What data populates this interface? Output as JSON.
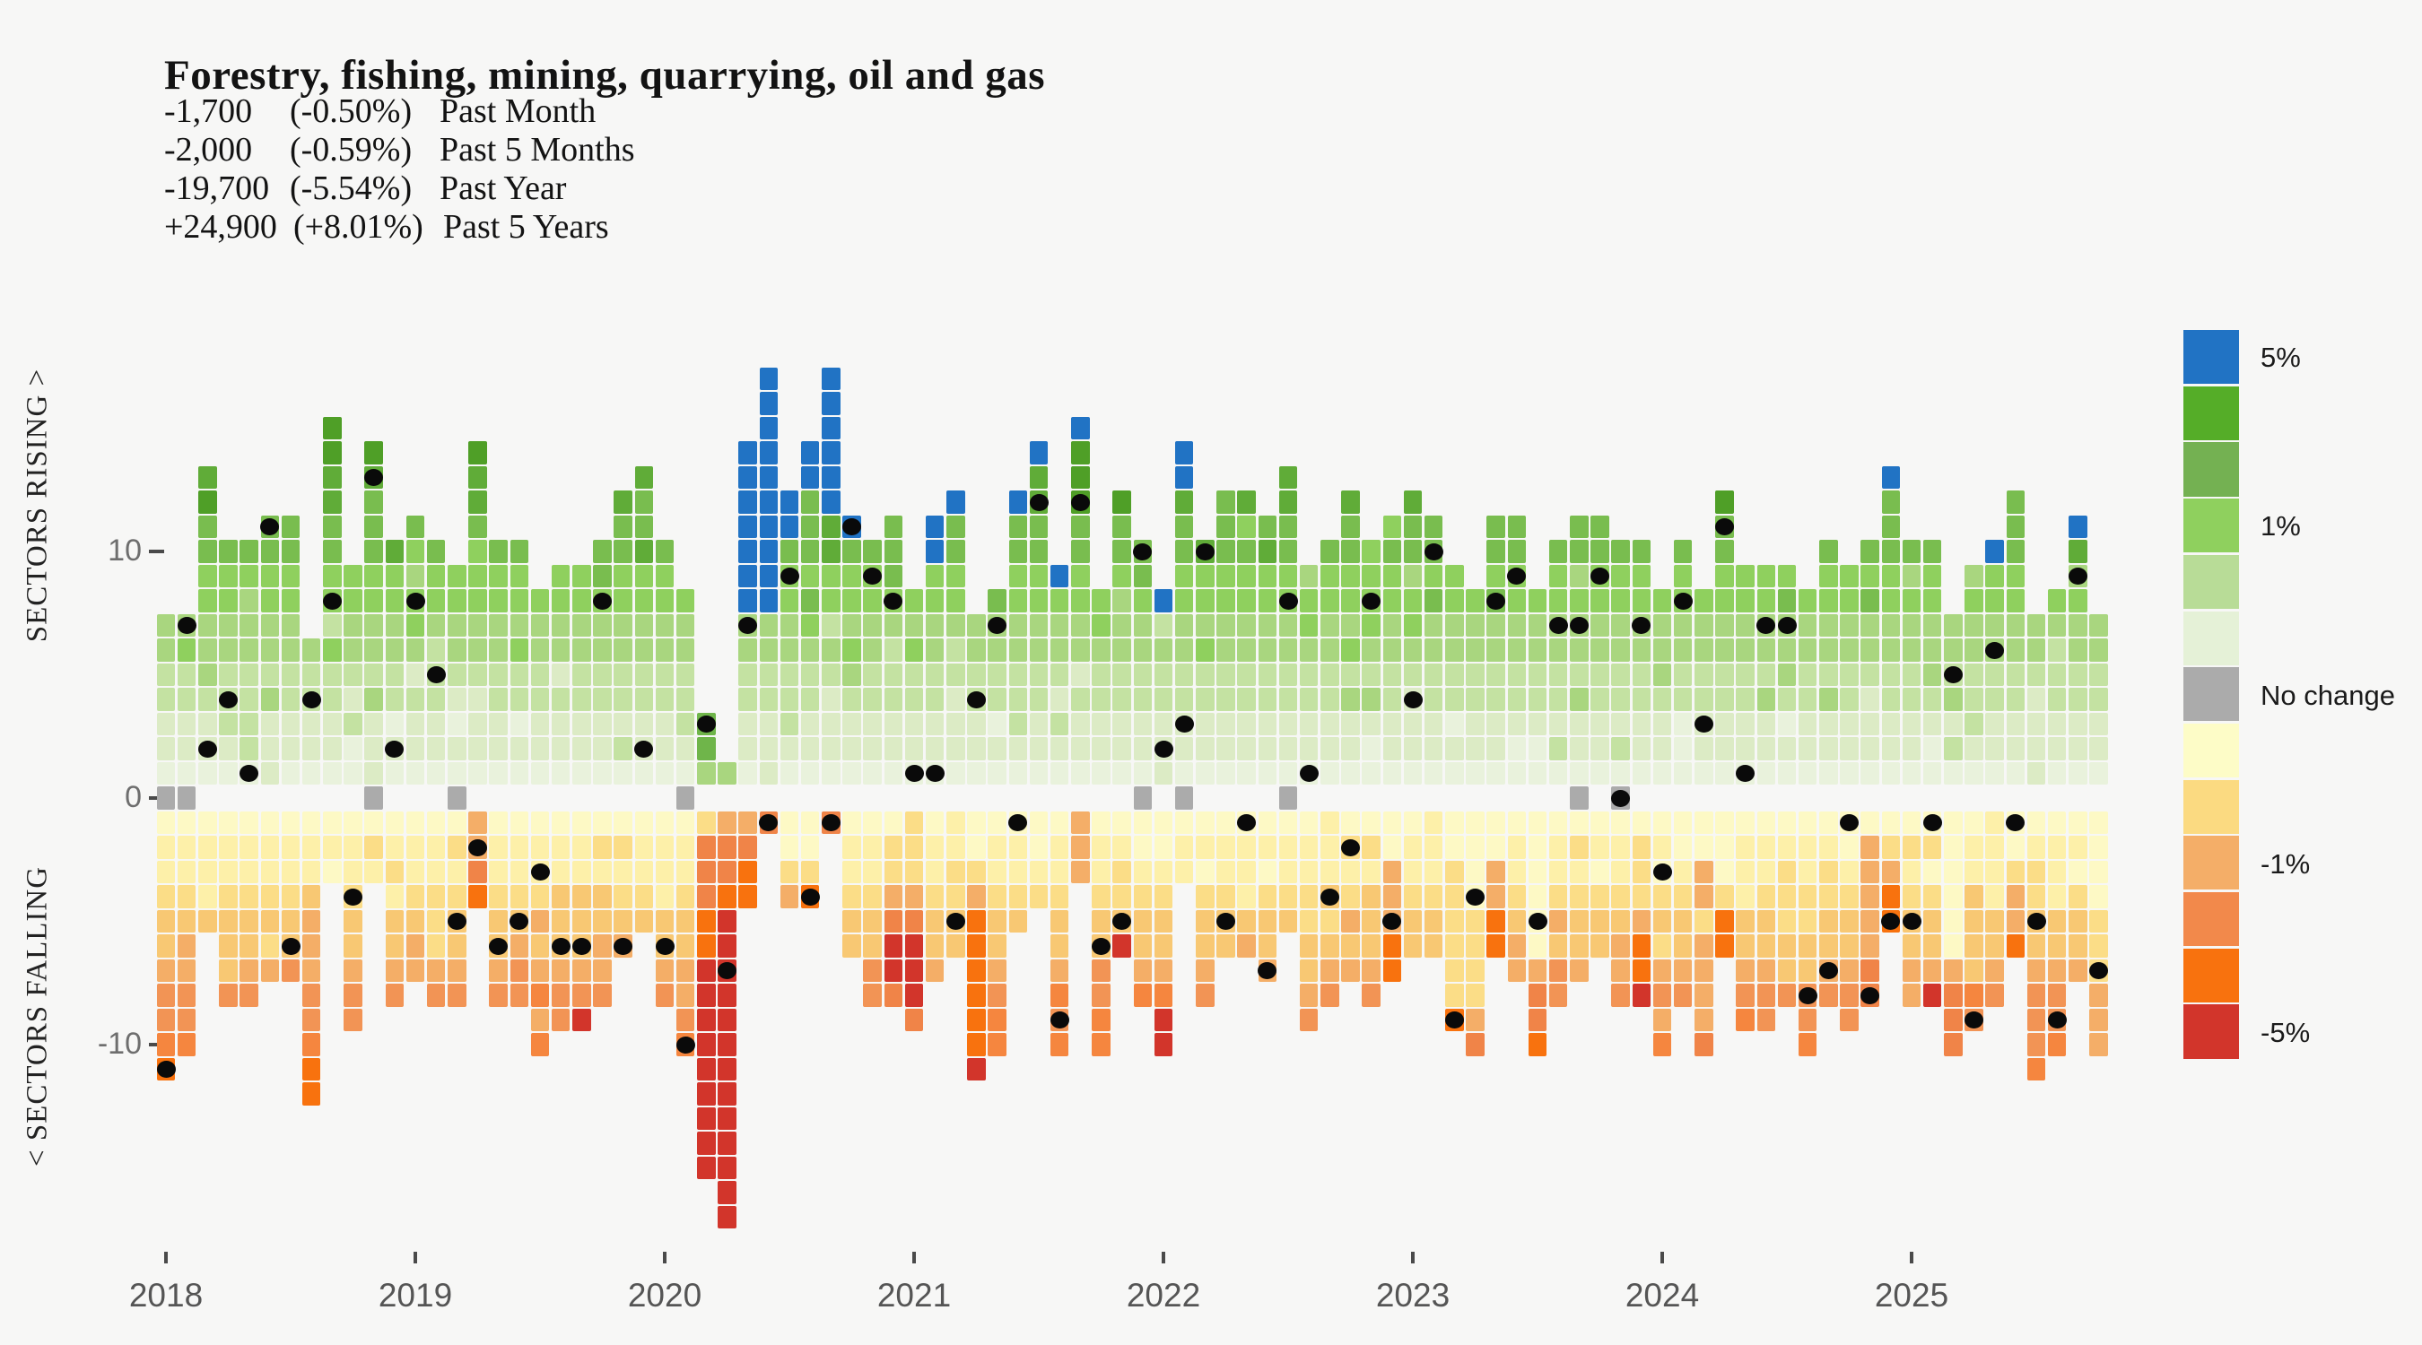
{
  "title": "Forestry, fishing, mining, quarrying, oil and gas",
  "stats": [
    {
      "value": "-1,700",
      "pct": "(-0.50%)",
      "period": "Past Month"
    },
    {
      "value": "-2,000",
      "pct": "(-0.59%)",
      "period": "Past 5 Months"
    },
    {
      "value": "-19,700",
      "pct": "(-5.54%)",
      "period": "Past Year"
    },
    {
      "value": "+24,900",
      "pct": "(+8.01%)",
      "period": "Past 5 Years"
    }
  ],
  "axis": {
    "rising_label": "SECTORS RISING >",
    "falling_label": "< SECTORS FALLING",
    "y_ticks": [
      {
        "label": "10",
        "value": 10
      },
      {
        "label": "0",
        "value": 0
      },
      {
        "label": "-10",
        "value": -10
      }
    ],
    "years": [
      {
        "label": "2018",
        "month_index": 0
      },
      {
        "label": "2019",
        "month_index": 12
      },
      {
        "label": "2020",
        "month_index": 24
      },
      {
        "label": "2021",
        "month_index": 36
      },
      {
        "label": "2022",
        "month_index": 48
      },
      {
        "label": "2023",
        "month_index": 60
      },
      {
        "label": "2024",
        "month_index": 72
      },
      {
        "label": "2025",
        "month_index": 84
      }
    ]
  },
  "legend": {
    "swatches": [
      "#2173c4",
      "#55ad28",
      "#74b152",
      "#8fd05e",
      "#b8dc97",
      "#e5f1d7",
      "#ababab",
      "#fdfcc7",
      "#fbda81",
      "#f4ae68",
      "#f2894b",
      "#f8720e",
      "#d2352b"
    ],
    "labels": [
      {
        "text": "5%",
        "block": 0
      },
      {
        "text": "1%",
        "block": 3
      },
      {
        "text": "No change",
        "block": 6
      },
      {
        "text": "-1%",
        "block": 9
      },
      {
        "text": "-5%",
        "block": 12
      }
    ]
  },
  "chart_data": {
    "type": "heatmap",
    "description": "Monthly waffle columns: each square = one economic sector. Squares above 0 = sectors with rising employment that month (color = % gain, green to blue >5%), below 0 = sectors falling (yellow to red <-5%), gray at 0 = no change. Black dot = rank position of this sector (forestry, fishing, mining, quarrying, oil and gas) within that month.",
    "x_range": [
      "2018-01",
      "2025-10"
    ],
    "ylabel_units": "number of sectors rising / falling",
    "ylim": [
      -18,
      18
    ],
    "grid": false,
    "legend_position": "right",
    "palette": {
      "blue": "#2173c4",
      "gray": "#ababab",
      "red": "#d2352b",
      "greens_low_to_high": [
        "#e9f2dc",
        "#dcebc5",
        "#c4e2a2",
        "#a9d67f",
        "#8fd05e",
        "#79bd4f",
        "#60ac38",
        "#4f9f27"
      ],
      "downs_shallow_to_deep": [
        "#fdf9c5",
        "#fdf0a9",
        "#fbdd87",
        "#f8c873",
        "#f4ae67",
        "#f29455",
        "#f5863f",
        "#f8720e"
      ],
      "override_up": [
        "#e9f2dc",
        "#c4e2a2",
        "#a9d67f",
        "#8fd05e",
        "#6fb54a",
        "#55a829",
        "#2173c4"
      ],
      "override_down": [
        "#fdf9c5",
        "#fbdd87",
        "#f4ae68",
        "#f08448",
        "#f8720e",
        "#d2352b"
      ]
    },
    "months": [
      {
        "m": "2018-01",
        "u": 7,
        "g": 1,
        "d": 11,
        "dot": -11
      },
      {
        "m": "2018-02",
        "u": 7,
        "g": 1,
        "d": 10,
        "dot": 7
      },
      {
        "m": "2018-03",
        "u": 13,
        "d": 5,
        "dot": 2
      },
      {
        "m": "2018-04",
        "u": 10,
        "d": 8,
        "dot": 4
      },
      {
        "m": "2018-05",
        "u": 10,
        "d": 8,
        "dot": 1
      },
      {
        "m": "2018-06",
        "u": 11,
        "d": 7,
        "dot": 11
      },
      {
        "m": "2018-07",
        "u": 11,
        "d": 7,
        "dot": -6
      },
      {
        "m": "2018-08",
        "u": 6,
        "d": 12,
        "dot": 4
      },
      {
        "m": "2018-09",
        "u": 15,
        "d": 3,
        "dot": 8
      },
      {
        "m": "2018-10",
        "u": 9,
        "d": 9,
        "dot": -4
      },
      {
        "m": "2018-11",
        "u": 14,
        "g": 1,
        "d": 3,
        "dot": 13
      },
      {
        "m": "2018-12",
        "u": 10,
        "d": 8,
        "dot": 2
      },
      {
        "m": "2019-01",
        "u": 11,
        "d": 7,
        "dot": 8
      },
      {
        "m": "2019-02",
        "u": 10,
        "d": 8,
        "dot": 5
      },
      {
        "m": "2019-03",
        "u": 9,
        "g": 1,
        "d": 8,
        "dot": -5
      },
      {
        "m": "2019-04",
        "u": 14,
        "d": 4,
        "dot": -2,
        "dc": [
          2,
          2,
          3,
          4
        ]
      },
      {
        "m": "2019-05",
        "u": 10,
        "d": 8,
        "dot": -6
      },
      {
        "m": "2019-06",
        "u": 10,
        "d": 8,
        "dot": -5
      },
      {
        "m": "2019-07",
        "u": 8,
        "d": 10,
        "dot": -3
      },
      {
        "m": "2019-08",
        "u": 9,
        "d": 9,
        "dot": -6
      },
      {
        "m": "2019-09",
        "u": 9,
        "d": 9,
        "dot": -6,
        "r": 1
      },
      {
        "m": "2019-10",
        "u": 10,
        "d": 8,
        "dot": 8
      },
      {
        "m": "2019-11",
        "u": 12,
        "d": 6,
        "dot": -6
      },
      {
        "m": "2019-12",
        "u": 13,
        "d": 5,
        "dot": 2
      },
      {
        "m": "2020-01",
        "u": 10,
        "d": 8,
        "dot": -6
      },
      {
        "m": "2020-02",
        "u": 8,
        "g": 1,
        "d": 10,
        "dot": -10
      },
      {
        "m": "2020-03",
        "u": 3,
        "d": 15,
        "dot": 3,
        "r": 9,
        "uc": [
          2,
          4,
          4
        ],
        "dc": [
          1,
          3,
          3,
          3,
          4,
          4
        ]
      },
      {
        "m": "2020-04",
        "u": 1,
        "d": 17,
        "dot": -7,
        "r": 13,
        "uc": [
          2
        ],
        "dc": [
          2,
          3,
          3,
          4
        ]
      },
      {
        "m": "2020-05",
        "u": 14,
        "d": 4,
        "dot": 7,
        "b": 7,
        "dc": [
          2,
          3,
          4,
          4
        ]
      },
      {
        "m": "2020-06",
        "u": 17,
        "d": 1,
        "dot": -1,
        "b": 10,
        "dc": [
          3
        ]
      },
      {
        "m": "2020-07",
        "u": 12,
        "d": 4,
        "dot": 9,
        "b": 2,
        "dc": [
          0,
          0,
          1,
          2
        ]
      },
      {
        "m": "2020-08",
        "u": 14,
        "d": 4,
        "dot": -4,
        "b": 2,
        "dc": [
          0,
          0,
          1,
          4
        ]
      },
      {
        "m": "2020-09",
        "u": 17,
        "d": 1,
        "dot": -1,
        "b": 6,
        "dc": [
          3
        ]
      },
      {
        "m": "2020-10",
        "u": 11,
        "d": 6,
        "dot": 11,
        "b": 1
      },
      {
        "m": "2020-11",
        "u": 10,
        "d": 8,
        "dot": 9
      },
      {
        "m": "2020-12",
        "u": 11,
        "d": 8,
        "dot": 8,
        "dc": [
          0,
          1,
          1,
          2,
          3,
          5,
          5,
          3
        ]
      },
      {
        "m": "2021-01",
        "u": 8,
        "d": 9,
        "dot": 1,
        "dc": [
          1,
          1,
          1,
          2,
          3,
          5,
          5,
          5,
          3
        ]
      },
      {
        "m": "2021-02",
        "u": 11,
        "d": 7,
        "dot": 1,
        "b": 2
      },
      {
        "m": "2021-03",
        "u": 12,
        "d": 6,
        "dot": -5,
        "b": 1
      },
      {
        "m": "2021-04",
        "u": 7,
        "d": 11,
        "dot": 4,
        "dc": [
          0,
          0,
          1,
          2,
          4,
          4,
          4,
          4,
          4,
          4,
          5
        ]
      },
      {
        "m": "2021-05",
        "u": 8,
        "d": 10,
        "dot": 7
      },
      {
        "m": "2021-06",
        "u": 12,
        "d": 5,
        "dot": -1,
        "b": 1
      },
      {
        "m": "2021-07",
        "u": 14,
        "d": 4,
        "dot": 12,
        "b": 1
      },
      {
        "m": "2021-08",
        "u": 9,
        "d": 10,
        "dot": -9,
        "b": 1
      },
      {
        "m": "2021-09",
        "u": 15,
        "d": 3,
        "dot": 12,
        "b": 1,
        "dc": [
          2,
          2,
          2
        ]
      },
      {
        "m": "2021-10",
        "u": 8,
        "d": 10,
        "dot": -6
      },
      {
        "m": "2021-11",
        "u": 12,
        "d": 6,
        "dot": -5,
        "r": 1
      },
      {
        "m": "2021-12",
        "u": 10,
        "g": 1,
        "d": 8,
        "dot": 10
      },
      {
        "m": "2022-01",
        "u": 8,
        "d": 10,
        "dot": 2,
        "b": 1,
        "r": 2
      },
      {
        "m": "2022-02",
        "u": 14,
        "g": 1,
        "d": 3,
        "dot": 3,
        "b": 2
      },
      {
        "m": "2022-03",
        "u": 10,
        "d": 8,
        "dot": 10
      },
      {
        "m": "2022-04",
        "u": 12,
        "d": 6,
        "dot": -5
      },
      {
        "m": "2022-05",
        "u": 12,
        "d": 6,
        "dot": -1
      },
      {
        "m": "2022-06",
        "u": 11,
        "d": 7,
        "dot": -7
      },
      {
        "m": "2022-07",
        "u": 13,
        "g": 1,
        "d": 5,
        "dot": 8
      },
      {
        "m": "2022-08",
        "u": 9,
        "d": 9,
        "dot": 1
      },
      {
        "m": "2022-09",
        "u": 10,
        "d": 8,
        "dot": -4
      },
      {
        "m": "2022-10",
        "u": 12,
        "d": 7,
        "dot": -2
      },
      {
        "m": "2022-11",
        "u": 10,
        "d": 8,
        "dot": 8
      },
      {
        "m": "2022-12",
        "u": 11,
        "d": 7,
        "dot": -5,
        "dc": [
          0,
          0,
          2,
          2,
          2,
          4,
          4
        ]
      },
      {
        "m": "2023-01",
        "u": 12,
        "d": 6,
        "dot": 4
      },
      {
        "m": "2023-02",
        "u": 11,
        "d": 6,
        "dot": 10
      },
      {
        "m": "2023-03",
        "u": 9,
        "d": 9,
        "dot": -9,
        "dc": [
          0,
          0,
          1,
          1,
          1,
          1,
          1,
          1,
          4
        ]
      },
      {
        "m": "2023-04",
        "u": 8,
        "d": 10,
        "dot": -4,
        "dc": [
          0,
          0,
          0,
          0,
          1,
          1,
          1,
          1,
          2,
          3
        ]
      },
      {
        "m": "2023-05",
        "u": 11,
        "d": 6,
        "dot": 8,
        "dc": [
          0,
          0,
          2,
          2,
          4,
          4
        ]
      },
      {
        "m": "2023-06",
        "u": 11,
        "d": 7,
        "dot": 9
      },
      {
        "m": "2023-07",
        "u": 8,
        "d": 10,
        "dot": -5,
        "dc": [
          0,
          0,
          0,
          0,
          0,
          0,
          2,
          3,
          3,
          4
        ]
      },
      {
        "m": "2023-08",
        "u": 10,
        "d": 8,
        "dot": 7
      },
      {
        "m": "2023-09",
        "u": 11,
        "g": 1,
        "d": 7,
        "dot": 7
      },
      {
        "m": "2023-10",
        "u": 11,
        "d": 6,
        "dot": 9
      },
      {
        "m": "2023-11",
        "u": 10,
        "g": 1,
        "d": 8,
        "dot": 0
      },
      {
        "m": "2023-12",
        "u": 10,
        "d": 8,
        "dot": 7,
        "dc": [
          0,
          1,
          1,
          1,
          2,
          4,
          4,
          5
        ]
      },
      {
        "m": "2024-01",
        "u": 8,
        "d": 10,
        "dot": -3
      },
      {
        "m": "2024-02",
        "u": 10,
        "d": 8,
        "dot": 8
      },
      {
        "m": "2024-03",
        "u": 8,
        "d": 10,
        "dot": 3,
        "dc": [
          0,
          0,
          2,
          2,
          1,
          2,
          2,
          2,
          2,
          3
        ]
      },
      {
        "m": "2024-04",
        "u": 12,
        "d": 6,
        "dot": 11,
        "dc": [
          0,
          0,
          0,
          1,
          4,
          4
        ]
      },
      {
        "m": "2024-05",
        "u": 9,
        "d": 9,
        "dot": 1
      },
      {
        "m": "2024-06",
        "u": 9,
        "d": 9,
        "dot": 7
      },
      {
        "m": "2024-07",
        "u": 9,
        "d": 8,
        "dot": 7
      },
      {
        "m": "2024-08",
        "u": 8,
        "d": 10,
        "dot": -8
      },
      {
        "m": "2024-09",
        "u": 10,
        "d": 8,
        "dot": -7
      },
      {
        "m": "2024-10",
        "u": 9,
        "d": 9,
        "dot": -1
      },
      {
        "m": "2024-11",
        "u": 10,
        "d": 8,
        "dot": -8,
        "dc": [
          0,
          2,
          2,
          2,
          2,
          2,
          3,
          3
        ]
      },
      {
        "m": "2024-12",
        "u": 13,
        "d": 5,
        "dot": -5,
        "b": 1,
        "dc": [
          0,
          1,
          2,
          4,
          4
        ]
      },
      {
        "m": "2025-01",
        "u": 10,
        "d": 8,
        "dot": -5
      },
      {
        "m": "2025-02",
        "u": 10,
        "d": 8,
        "dot": -1,
        "r": 1
      },
      {
        "m": "2025-03",
        "u": 7,
        "d": 10,
        "dot": 5,
        "dc": [
          0,
          0,
          0,
          0,
          0,
          0,
          2,
          3,
          3,
          3
        ]
      },
      {
        "m": "2025-04",
        "u": 9,
        "d": 9,
        "dot": -9
      },
      {
        "m": "2025-05",
        "u": 10,
        "d": 8,
        "dot": 6,
        "b": 1
      },
      {
        "m": "2025-06",
        "u": 12,
        "d": 6,
        "dot": -1,
        "dc": [
          0,
          0,
          1,
          2,
          2,
          4
        ]
      },
      {
        "m": "2025-07",
        "u": 7,
        "d": 11,
        "dot": -5
      },
      {
        "m": "2025-08",
        "u": 8,
        "d": 10,
        "dot": -9
      },
      {
        "m": "2025-09",
        "u": 11,
        "d": 7,
        "dot": 9,
        "b": 1
      },
      {
        "m": "2025-10",
        "u": 7,
        "d": 10,
        "dot": -7,
        "dc": [
          0,
          0,
          0,
          0,
          1,
          1,
          1,
          2,
          2,
          2
        ]
      }
    ]
  }
}
